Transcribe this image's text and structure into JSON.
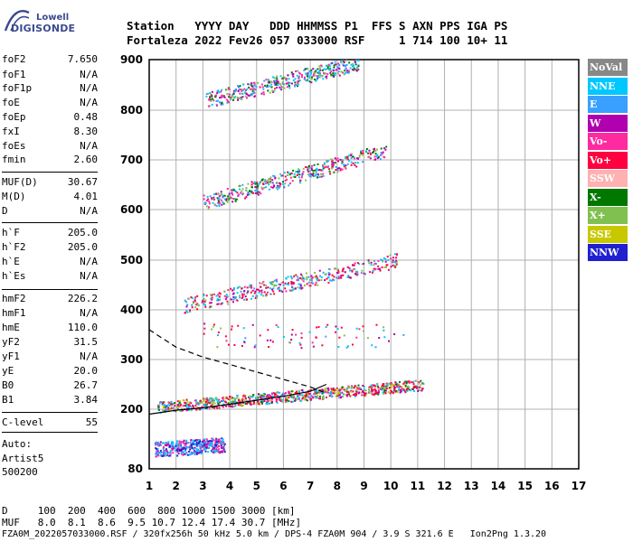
{
  "logo": {
    "brand": "Lowell",
    "name": "DIGISONDE"
  },
  "header": {
    "line1": "Station   YYYY DAY   DDD HHMMSS P1  FFS S AXN PPS IGA PS",
    "line2": "Fortaleza 2022 Fev26 057 033000 RSF     1 714 100 10+ 11"
  },
  "params": [
    {
      "label": "foF2",
      "value": "7.650"
    },
    {
      "label": "foF1",
      "value": "N/A"
    },
    {
      "label": "foF1p",
      "value": "N/A"
    },
    {
      "label": "foE",
      "value": "N/A"
    },
    {
      "label": "foEp",
      "value": "0.48"
    },
    {
      "label": "fxI",
      "value": "8.30"
    },
    {
      "label": "foEs",
      "value": "N/A"
    },
    {
      "label": "fmin",
      "value": "2.60"
    },
    {
      "label": "MUF(D)",
      "value": "30.67"
    },
    {
      "label": "M(D)",
      "value": "4.01"
    },
    {
      "label": "D",
      "value": "N/A"
    },
    {
      "label": "h`F",
      "value": "205.0"
    },
    {
      "label": "h`F2",
      "value": "205.0"
    },
    {
      "label": "h`E",
      "value": "N/A"
    },
    {
      "label": "h`Es",
      "value": "N/A"
    },
    {
      "label": "hmF2",
      "value": "226.2"
    },
    {
      "label": "hmF1",
      "value": "N/A"
    },
    {
      "label": "hmE",
      "value": "110.0"
    },
    {
      "label": "yF2",
      "value": "31.5"
    },
    {
      "label": "yF1",
      "value": "N/A"
    },
    {
      "label": "yE",
      "value": "20.0"
    },
    {
      "label": "B0",
      "value": "26.7"
    },
    {
      "label": "B1",
      "value": "3.84"
    },
    {
      "label": "C-level",
      "value": "55"
    }
  ],
  "auto": {
    "line1": "Auto:",
    "line2": "Artist5",
    "line3": "500200"
  },
  "legend": [
    {
      "label": "NoVal",
      "color": "#888888"
    },
    {
      "label": "NNE",
      "color": "#00c8ff"
    },
    {
      "label": "E",
      "color": "#3aa0ff"
    },
    {
      "label": "W",
      "color": "#b000b0"
    },
    {
      "label": "Vo-",
      "color": "#ff2aa0"
    },
    {
      "label": "Vo+",
      "color": "#ff0040"
    },
    {
      "label": "SSW",
      "color": "#ffb0b0"
    },
    {
      "label": "X-",
      "color": "#007800"
    },
    {
      "label": "X+",
      "color": "#80c050"
    },
    {
      "label": "SSE",
      "color": "#c8c800"
    },
    {
      "label": "NNW",
      "color": "#2020d0"
    }
  ],
  "bottom": {
    "line1": "D     100  200  400  600  800 1000 1500 3000 [km]",
    "line2": "MUF   8.0  8.1  8.6  9.5 10.7 12.4 17.4 30.7 [MHz]",
    "line3": "FZA0M_2022057033000.RSF / 320fx256h 50 kHz 5.0 km / DPS-4 FZA0M 904 / 3.9 S 321.6 E   Ion2Png 1.3.20"
  },
  "chart_data": {
    "type": "scatter",
    "xlim": [
      1,
      17
    ],
    "ylim": [
      80,
      900
    ],
    "x_ticks": [
      "1",
      "2",
      "3",
      "4",
      "5",
      "6",
      "7",
      "8",
      "9",
      "10",
      "11",
      "12",
      "13",
      "14",
      "15",
      "16",
      "17"
    ],
    "y_ticks": [
      "80",
      "200",
      "300",
      "400",
      "500",
      "600",
      "700",
      "800",
      "900"
    ],
    "grid": true,
    "traces": [
      {
        "name": "E echo",
        "x0": 1.2,
        "x1": 3.8,
        "h0": 120,
        "h1": 130
      },
      {
        "name": "F 1st hop",
        "x0": 1.3,
        "x1": 11.2,
        "h0": 205,
        "h1": 250
      },
      {
        "name": "F 2nd hop",
        "x0": 2.3,
        "x1": 10.2,
        "h0": 410,
        "h1": 500
      },
      {
        "name": "F 3rd hop",
        "x0": 3.0,
        "x1": 9.8,
        "h0": 615,
        "h1": 720
      },
      {
        "name": "F 4th hop",
        "x0": 3.1,
        "x1": 8.8,
        "h0": 820,
        "h1": 895
      }
    ],
    "profile_curve": {
      "x": [
        1.0,
        2.0,
        3.0,
        4.0,
        5.0,
        6.0,
        7.0,
        7.6
      ],
      "y": [
        190,
        198,
        203,
        210,
        218,
        226,
        236,
        250
      ]
    },
    "muf_curve": {
      "x": [
        1.0,
        2.0,
        3.0,
        4.0,
        5.0,
        6.0,
        7.0,
        7.6
      ],
      "y": [
        360,
        325,
        305,
        290,
        275,
        260,
        245,
        232
      ]
    }
  }
}
